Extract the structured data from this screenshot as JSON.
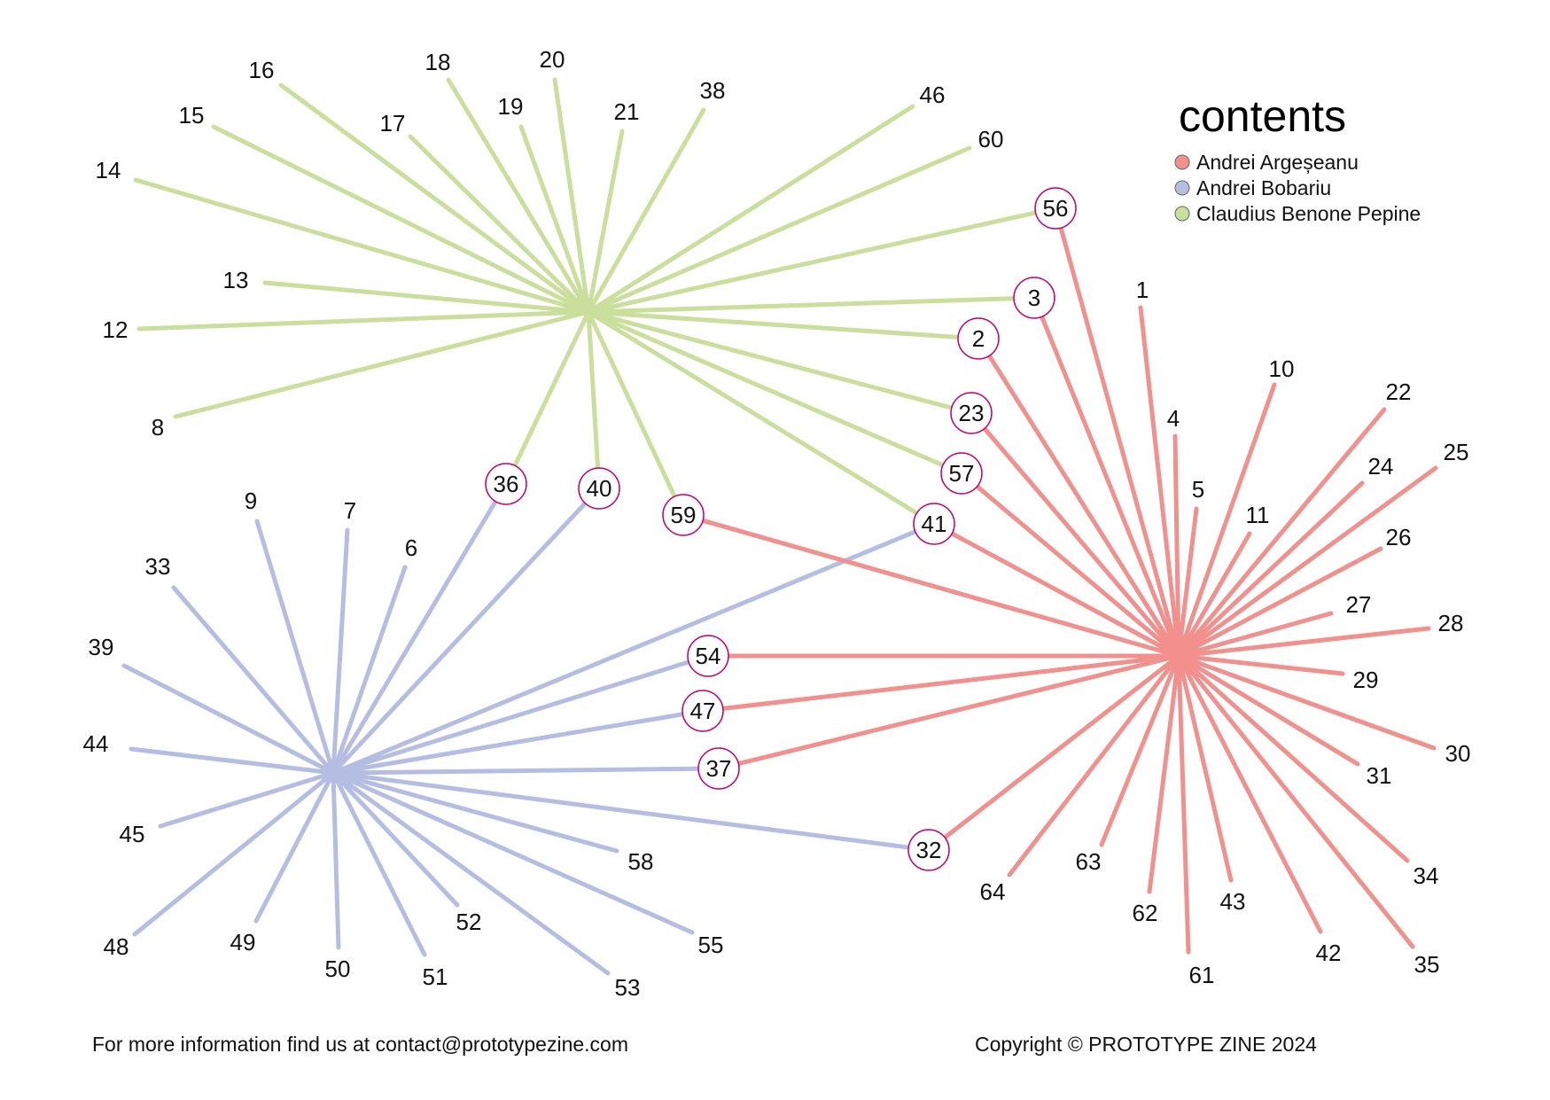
{
  "legend": {
    "title": "contents",
    "items": [
      {
        "label": "Andrei Argeșeanu",
        "color": "#f2908d",
        "author": "argeseanu"
      },
      {
        "label": "Andrei Bobariu",
        "color": "#b5bde3",
        "author": "bobariu"
      },
      {
        "label": "Claudius Benone Pepine",
        "color": "#c9df9b",
        "author": "pepine"
      }
    ]
  },
  "highlight_color": "#c8006e",
  "nodes": [
    {
      "id": "1",
      "authors": [
        "argeseanu"
      ]
    },
    {
      "id": "2",
      "authors": [
        "pepine",
        "argeseanu"
      ]
    },
    {
      "id": "3",
      "authors": [
        "pepine",
        "argeseanu"
      ]
    },
    {
      "id": "4",
      "authors": [
        "argeseanu"
      ]
    },
    {
      "id": "5",
      "authors": [
        "argeseanu"
      ]
    },
    {
      "id": "6",
      "authors": [
        "bobariu"
      ]
    },
    {
      "id": "7",
      "authors": [
        "bobariu"
      ]
    },
    {
      "id": "8",
      "authors": [
        "pepine"
      ]
    },
    {
      "id": "9",
      "authors": [
        "bobariu"
      ]
    },
    {
      "id": "10",
      "authors": [
        "argeseanu"
      ]
    },
    {
      "id": "11",
      "authors": [
        "argeseanu"
      ]
    },
    {
      "id": "12",
      "authors": [
        "pepine"
      ]
    },
    {
      "id": "13",
      "authors": [
        "pepine"
      ]
    },
    {
      "id": "14",
      "authors": [
        "pepine"
      ]
    },
    {
      "id": "15",
      "authors": [
        "pepine"
      ]
    },
    {
      "id": "16",
      "authors": [
        "pepine"
      ]
    },
    {
      "id": "17",
      "authors": [
        "pepine"
      ]
    },
    {
      "id": "18",
      "authors": [
        "pepine"
      ]
    },
    {
      "id": "19",
      "authors": [
        "pepine"
      ]
    },
    {
      "id": "20",
      "authors": [
        "pepine"
      ]
    },
    {
      "id": "21",
      "authors": [
        "pepine"
      ]
    },
    {
      "id": "22",
      "authors": [
        "argeseanu"
      ]
    },
    {
      "id": "23",
      "authors": [
        "pepine",
        "argeseanu"
      ]
    },
    {
      "id": "24",
      "authors": [
        "argeseanu"
      ]
    },
    {
      "id": "25",
      "authors": [
        "argeseanu"
      ]
    },
    {
      "id": "26",
      "authors": [
        "argeseanu"
      ]
    },
    {
      "id": "27",
      "authors": [
        "argeseanu"
      ]
    },
    {
      "id": "28",
      "authors": [
        "argeseanu"
      ]
    },
    {
      "id": "29",
      "authors": [
        "argeseanu"
      ]
    },
    {
      "id": "30",
      "authors": [
        "argeseanu"
      ]
    },
    {
      "id": "31",
      "authors": [
        "argeseanu"
      ]
    },
    {
      "id": "32",
      "authors": [
        "bobariu",
        "argeseanu"
      ]
    },
    {
      "id": "33",
      "authors": [
        "bobariu"
      ]
    },
    {
      "id": "34",
      "authors": [
        "argeseanu"
      ]
    },
    {
      "id": "35",
      "authors": [
        "argeseanu"
      ]
    },
    {
      "id": "36",
      "authors": [
        "pepine",
        "bobariu"
      ]
    },
    {
      "id": "37",
      "authors": [
        "bobariu",
        "argeseanu"
      ]
    },
    {
      "id": "38",
      "authors": [
        "pepine"
      ]
    },
    {
      "id": "39",
      "authors": [
        "bobariu"
      ]
    },
    {
      "id": "40",
      "authors": [
        "pepine",
        "bobariu"
      ]
    },
    {
      "id": "41",
      "authors": [
        "pepine",
        "bobariu",
        "argeseanu"
      ]
    },
    {
      "id": "42",
      "authors": [
        "argeseanu"
      ]
    },
    {
      "id": "43",
      "authors": [
        "argeseanu"
      ]
    },
    {
      "id": "44",
      "authors": [
        "bobariu"
      ]
    },
    {
      "id": "45",
      "authors": [
        "bobariu"
      ]
    },
    {
      "id": "46",
      "authors": [
        "pepine"
      ]
    },
    {
      "id": "47",
      "authors": [
        "bobariu",
        "argeseanu"
      ]
    },
    {
      "id": "48",
      "authors": [
        "bobariu"
      ]
    },
    {
      "id": "49",
      "authors": [
        "bobariu"
      ]
    },
    {
      "id": "50",
      "authors": [
        "bobariu"
      ]
    },
    {
      "id": "51",
      "authors": [
        "bobariu"
      ]
    },
    {
      "id": "52",
      "authors": [
        "bobariu"
      ]
    },
    {
      "id": "53",
      "authors": [
        "bobariu"
      ]
    },
    {
      "id": "54",
      "authors": [
        "bobariu",
        "argeseanu"
      ]
    },
    {
      "id": "55",
      "authors": [
        "bobariu"
      ]
    },
    {
      "id": "56",
      "authors": [
        "pepine",
        "argeseanu"
      ]
    },
    {
      "id": "57",
      "authors": [
        "pepine",
        "argeseanu"
      ]
    },
    {
      "id": "58",
      "authors": [
        "bobariu"
      ]
    },
    {
      "id": "59",
      "authors": [
        "pepine",
        "argeseanu"
      ]
    },
    {
      "id": "60",
      "authors": [
        "pepine"
      ]
    },
    {
      "id": "61",
      "authors": [
        "argeseanu"
      ]
    },
    {
      "id": "62",
      "authors": [
        "argeseanu"
      ]
    },
    {
      "id": "63",
      "authors": [
        "argeseanu"
      ]
    },
    {
      "id": "64",
      "authors": [
        "argeseanu"
      ]
    }
  ],
  "footer": {
    "left": "For more information find us at contact@prototypezine.com",
    "right": "Copyright © PROTOTYPE ZINE 2024"
  }
}
